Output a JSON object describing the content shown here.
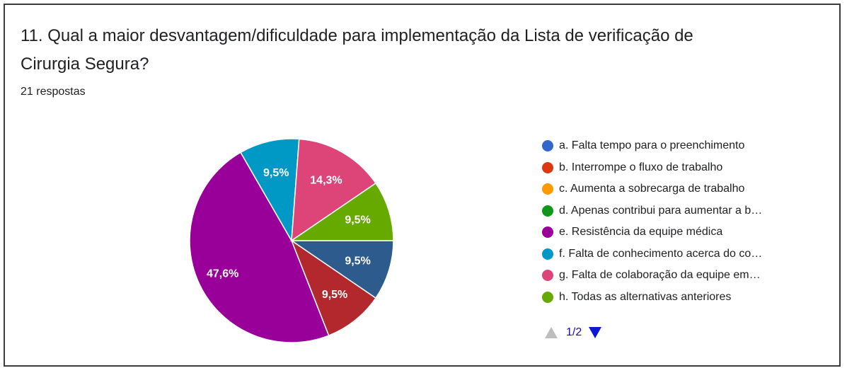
{
  "question": {
    "title_line1": "11. Qual a maior desvantagem/dificuldade para implementação da Lista de verificação de",
    "title_line2": "Cirurgia Segura?",
    "responses": "21 respostas"
  },
  "chart_data": {
    "type": "pie",
    "total": 21,
    "slices": [
      {
        "label": "a. Falta tempo para o preenchimento",
        "value": 2,
        "percent_label": "9,5%",
        "color": "#2e5b8e"
      },
      {
        "label": "b. Interrompe o fluxo de trabalho",
        "value": 2,
        "percent_label": "9,5%",
        "color": "#b2282c"
      },
      {
        "label": "c. Aumenta a sobrecarga de trabalho",
        "value": 0,
        "percent_label": "",
        "color": "#ff9900"
      },
      {
        "label": "d. Apenas contribui para aumentar a b…",
        "value": 0,
        "percent_label": "",
        "color": "#109618"
      },
      {
        "label": "e. Resistência da equipe médica",
        "value": 10,
        "percent_label": "47,6%",
        "color": "#990099"
      },
      {
        "label": "f. Falta de conhecimento acerca do co…",
        "value": 2,
        "percent_label": "9,5%",
        "color": "#0099c6"
      },
      {
        "label": "g. Falta de colaboração da equipe em…",
        "value": 3,
        "percent_label": "14,3%",
        "color": "#dd4477"
      },
      {
        "label": "h. Todas as alternativas anteriores",
        "value": 2,
        "percent_label": "9,5%",
        "color": "#66aa00"
      }
    ],
    "legend_colors": [
      "#3366cc",
      "#dc3912",
      "#ff9900",
      "#109618",
      "#990099",
      "#0099c6",
      "#dd4477",
      "#66aa00"
    ],
    "legend_position": "right"
  },
  "legend": {
    "items": [
      "a. Falta tempo para o preenchimento",
      "b. Interrompe o fluxo de trabalho",
      "c. Aumenta a sobrecarga de trabalho",
      "d. Apenas contribui para aumentar a b…",
      "e. Resistência da equipe médica",
      "f. Falta de conhecimento acerca do co…",
      "g. Falta de colaboração da equipe em…",
      "h. Todas as alternativas anteriores"
    ],
    "pager": {
      "page": "1/2",
      "prev_icon": "triangle-up-icon",
      "next_icon": "triangle-down-icon"
    }
  }
}
